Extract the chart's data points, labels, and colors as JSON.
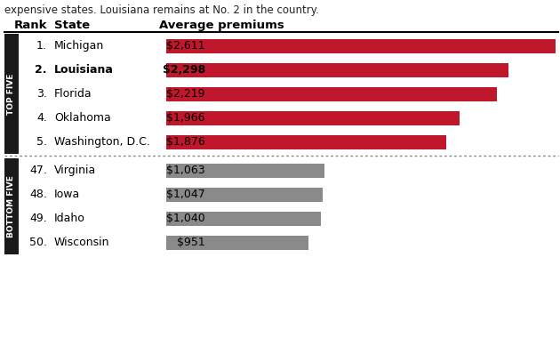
{
  "subtitle": "expensive states. Louisiana remains at No. 2 in the country.",
  "header_rank": "Rank",
  "header_state": "State",
  "header_premiums": "Average premiums",
  "top_five_label": "TOP FIVE",
  "bottom_five_label": "BOTTOM FIVE",
  "rows": [
    {
      "rank": "1.",
      "state": "Michigan",
      "premium": "$2,611",
      "value": 2611,
      "bold": false,
      "section": "top"
    },
    {
      "rank": "2.",
      "state": "Louisiana",
      "premium": "$2,298",
      "value": 2298,
      "bold": true,
      "section": "top"
    },
    {
      "rank": "3.",
      "state": "Florida",
      "premium": "$2,219",
      "value": 2219,
      "bold": false,
      "section": "top"
    },
    {
      "rank": "4.",
      "state": "Oklahoma",
      "premium": "$1,966",
      "value": 1966,
      "bold": false,
      "section": "top"
    },
    {
      "rank": "5.",
      "state": "Washington, D.C.",
      "premium": "$1,876",
      "value": 1876,
      "bold": false,
      "section": "top"
    },
    {
      "rank": "47.",
      "state": "Virginia",
      "premium": "$1,063",
      "value": 1063,
      "bold": false,
      "section": "bottom"
    },
    {
      "rank": "48.",
      "state": "Iowa",
      "premium": "$1,047",
      "value": 1047,
      "bold": false,
      "section": "bottom"
    },
    {
      "rank": "49.",
      "state": "Idaho",
      "premium": "$1,040",
      "value": 1040,
      "bold": false,
      "section": "bottom"
    },
    {
      "rank": "50.",
      "state": "Wisconsin",
      "premium": "$951",
      "value": 951,
      "bold": false,
      "section": "bottom"
    }
  ],
  "top_bar_color": "#c0172c",
  "bottom_bar_color": "#8a8a8a",
  "max_bar_value": 2611,
  "background_color": "#ffffff",
  "header_line_color": "#000000",
  "separator_color": "#888888",
  "sidebar_bg": "#1a1a1a",
  "sidebar_text_color": "#ffffff",
  "subtitle_fontsize": 8.5,
  "header_fontsize": 9.5,
  "row_fontsize": 9.0,
  "sidebar_label_fontsize": 6.5
}
